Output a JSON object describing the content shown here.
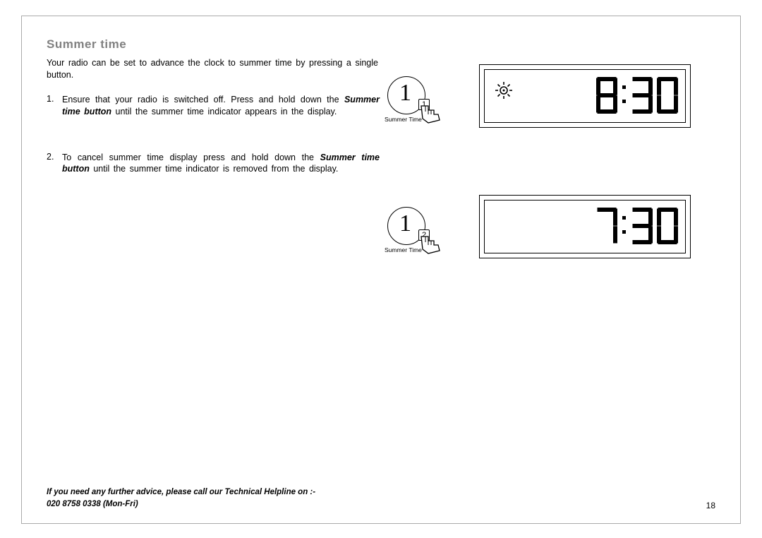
{
  "heading": "Summer time",
  "intro": "Your radio can be set to advance the clock to summer time by pressing a single button.",
  "steps": [
    {
      "num": "1.",
      "pre": "Ensure that your radio is switched off. Press and hold down the ",
      "bold": "Summer time button",
      "post": " until the summer time indicator appears in the display."
    },
    {
      "num": "2.",
      "pre": "To cancel summer time display press and hold down the ",
      "bold": "Summer time button",
      "post": " until the summer time indicator is removed from the display."
    }
  ],
  "button1": {
    "big": "1",
    "small": "1",
    "label": "Summer Time"
  },
  "button2": {
    "big": "1",
    "small": "2",
    "label": "Summer Time"
  },
  "display1": {
    "time": "8:30",
    "show_sun": true
  },
  "display2": {
    "time": "7:30",
    "show_sun": false
  },
  "footer_line1": "If you need any further advice, please call our Technical Helpline on :-",
  "footer_line2": "020 8758 0338 (Mon-Fri)",
  "page_number": "18",
  "colors": {
    "heading": "#808080",
    "text": "#000000",
    "border": "#aaaaaa",
    "lcd_segment": "#000000",
    "background": "#ffffff"
  },
  "segment_style": {
    "digit_width": 30,
    "digit_height": 52,
    "stroke": 6,
    "color": "#000000"
  }
}
